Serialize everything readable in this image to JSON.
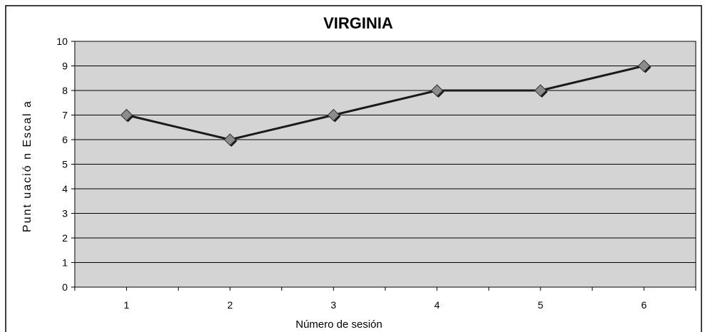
{
  "chart_data": {
    "type": "line",
    "title": "VIRGINIA",
    "xlabel": "Número de sesión",
    "ylabel": "Puntuación Escala",
    "ylabel_display": "Punt uació n Escal a",
    "categories": [
      "1",
      "2",
      "3",
      "4",
      "5",
      "6"
    ],
    "series": [
      {
        "values": [
          7,
          6,
          7,
          8,
          8,
          9
        ]
      }
    ],
    "ylim": [
      0,
      10
    ],
    "yticks": [
      "0",
      "1",
      "2",
      "3",
      "4",
      "5",
      "6",
      "7",
      "8",
      "9",
      "10"
    ],
    "grid": true,
    "legend": "none",
    "colors": {
      "plot_background": "#d4d4d4",
      "line": "#1a1a1a",
      "marker": "#8c8c8c",
      "marker_shadow": "#1a1a1a",
      "gridline": "#000000"
    }
  }
}
